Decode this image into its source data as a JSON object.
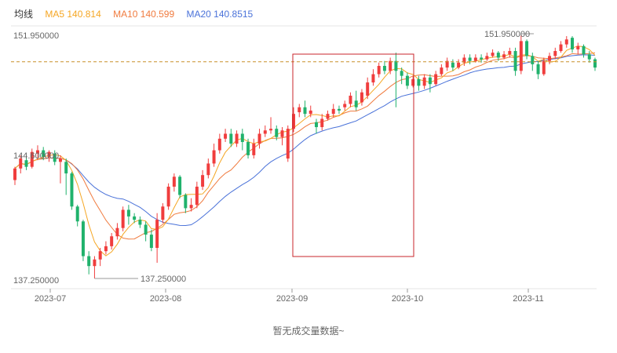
{
  "legend": {
    "title": "均线",
    "ma5": "MA5 140.814",
    "ma10": "MA10 140.599",
    "ma20": "MA20 140.8515"
  },
  "colors": {
    "up": "#f03d3d",
    "down": "#20b26c",
    "ma5": "#f5a623",
    "ma10": "#f07b3f",
    "ma20": "#4a72d9",
    "ref_line": "#c8902a",
    "box": "#c9242b",
    "axis_text": "#666666"
  },
  "empty_message": "暂无成交量数据~",
  "chart_data": {
    "type": "candlestick",
    "y_tick_labels": [
      "151.950000",
      "144.600000",
      "137.250000"
    ],
    "ylim": [
      137.25,
      151.95
    ],
    "x_tick_labels": [
      "2023-07",
      "2023-08",
      "2023-09",
      "2023-10",
      "2023-11"
    ],
    "reference_line": 150.35,
    "annotations": {
      "high": "151.950000",
      "low": "137.250000"
    },
    "highlight_box": {
      "from": "2023-09",
      "to": "2023-10"
    },
    "candles": [
      [
        143.2,
        143.9,
        144.0,
        142.9
      ],
      [
        143.9,
        144.5,
        144.7,
        143.6
      ],
      [
        144.4,
        144.0,
        144.7,
        143.8
      ],
      [
        144.0,
        144.9,
        145.1,
        143.9
      ],
      [
        144.8,
        145.0,
        145.3,
        144.4
      ],
      [
        145.0,
        144.6,
        145.2,
        144.4
      ],
      [
        144.6,
        144.9,
        145.0,
        144.3
      ],
      [
        144.8,
        144.3,
        145.0,
        144.1
      ],
      [
        144.3,
        144.5,
        144.7,
        143.0
      ],
      [
        144.3,
        143.6,
        144.5,
        142.3
      ],
      [
        143.6,
        141.6,
        143.7,
        141.4
      ],
      [
        141.6,
        140.7,
        141.7,
        140.4
      ],
      [
        140.7,
        138.6,
        140.8,
        138.3
      ],
      [
        138.6,
        138.0,
        138.9,
        137.5
      ],
      [
        138.0,
        138.4,
        138.6,
        137.25
      ],
      [
        138.4,
        138.9,
        139.1,
        138.0
      ],
      [
        138.9,
        139.2,
        139.5,
        138.7
      ],
      [
        139.2,
        139.8,
        140.0,
        139.0
      ],
      [
        139.8,
        140.3,
        140.6,
        139.6
      ],
      [
        140.3,
        141.4,
        141.6,
        140.1
      ],
      [
        141.4,
        141.0,
        141.7,
        140.5
      ],
      [
        141.0,
        140.8,
        141.2,
        140.6
      ],
      [
        140.8,
        140.5,
        141.0,
        140.3
      ],
      [
        140.5,
        139.9,
        140.7,
        139.5
      ],
      [
        139.9,
        139.1,
        140.2,
        138.9
      ],
      [
        139.1,
        140.8,
        141.2,
        138.2
      ],
      [
        140.8,
        141.6,
        141.8,
        140.6
      ],
      [
        141.6,
        142.8,
        143.0,
        141.4
      ],
      [
        142.8,
        143.4,
        143.6,
        142.5
      ],
      [
        143.4,
        142.3,
        143.5,
        142.1
      ],
      [
        142.3,
        141.5,
        142.4,
        141.2
      ],
      [
        141.5,
        141.7,
        142.1,
        141.3
      ],
      [
        141.7,
        142.8,
        143.1,
        141.5
      ],
      [
        142.8,
        143.5,
        143.8,
        142.6
      ],
      [
        143.5,
        144.2,
        144.5,
        143.3
      ],
      [
        144.2,
        145.0,
        145.4,
        144.0
      ],
      [
        145.0,
        145.7,
        146.0,
        144.8
      ],
      [
        145.7,
        146.0,
        146.3,
        145.5
      ],
      [
        146.0,
        145.4,
        146.3,
        145.2
      ],
      [
        145.4,
        146.0,
        146.2,
        145.2
      ],
      [
        146.0,
        145.5,
        146.3,
        145.0
      ],
      [
        145.5,
        144.7,
        145.7,
        144.5
      ],
      [
        144.7,
        145.4,
        145.7,
        144.5
      ],
      [
        145.4,
        146.0,
        146.3,
        145.1
      ],
      [
        146.0,
        146.2,
        146.5,
        145.8
      ],
      [
        146.2,
        146.3,
        147.0,
        146.0
      ],
      [
        146.3,
        145.8,
        146.5,
        145.6
      ],
      [
        145.8,
        146.2,
        146.4,
        145.3
      ],
      [
        144.5,
        146.3,
        146.5,
        144.3
      ],
      [
        146.3,
        147.2,
        147.6,
        146.1
      ],
      [
        147.3,
        147.6,
        147.8,
        147.0
      ],
      [
        147.6,
        147.2,
        148.0,
        147.0
      ],
      [
        147.2,
        147.4,
        147.7,
        147.0
      ],
      [
        146.7,
        146.4,
        146.9,
        146.0
      ],
      [
        146.4,
        146.9,
        147.2,
        146.2
      ],
      [
        146.9,
        147.2,
        147.4,
        146.8
      ],
      [
        147.2,
        147.5,
        147.8,
        147.0
      ],
      [
        147.5,
        147.4,
        147.7,
        147.2
      ],
      [
        147.6,
        147.8,
        148.0,
        147.4
      ],
      [
        147.8,
        148.3,
        148.5,
        147.6
      ],
      [
        148.0,
        147.6,
        148.6,
        147.4
      ],
      [
        147.9,
        148.5,
        148.7,
        147.7
      ],
      [
        148.3,
        149.1,
        149.4,
        148.1
      ],
      [
        149.1,
        149.6,
        149.9,
        148.9
      ],
      [
        149.6,
        150.1,
        150.3,
        149.4
      ],
      [
        150.1,
        149.8,
        150.4,
        149.6
      ],
      [
        149.8,
        150.4,
        150.6,
        149.6
      ],
      [
        150.4,
        149.8,
        150.9,
        147.6
      ],
      [
        149.8,
        149.5,
        150.0,
        149.0
      ],
      [
        149.5,
        148.9,
        149.7,
        148.7
      ],
      [
        148.9,
        149.3,
        149.5,
        148.8
      ],
      [
        149.3,
        148.9,
        149.5,
        148.6
      ],
      [
        148.9,
        149.4,
        149.6,
        148.7
      ],
      [
        149.4,
        149.0,
        149.6,
        148.5
      ],
      [
        149.0,
        149.6,
        149.8,
        148.9
      ],
      [
        149.6,
        150.0,
        150.2,
        149.5
      ],
      [
        150.0,
        150.4,
        150.6,
        149.8
      ],
      [
        150.3,
        150.0,
        150.5,
        149.8
      ],
      [
        150.0,
        150.3,
        150.5,
        149.9
      ],
      [
        150.3,
        150.6,
        150.8,
        150.1
      ],
      [
        150.6,
        150.4,
        150.8,
        150.2
      ],
      [
        150.4,
        150.6,
        150.8,
        150.3
      ],
      [
        150.6,
        150.5,
        150.8,
        150.3
      ],
      [
        150.5,
        150.7,
        150.9,
        150.4
      ],
      [
        150.7,
        150.9,
        151.1,
        150.6
      ],
      [
        150.9,
        150.6,
        151.0,
        150.4
      ],
      [
        150.6,
        150.8,
        151.0,
        150.5
      ],
      [
        150.8,
        151.0,
        151.2,
        150.6
      ],
      [
        151.0,
        149.8,
        151.2,
        149.5
      ],
      [
        149.8,
        151.6,
        151.95,
        149.6
      ],
      [
        151.6,
        150.7,
        151.7,
        150.5
      ],
      [
        150.7,
        150.2,
        150.9,
        149.8
      ],
      [
        150.2,
        149.6,
        150.4,
        149.3
      ],
      [
        149.6,
        150.4,
        150.6,
        149.5
      ],
      [
        150.4,
        150.7,
        150.9,
        150.2
      ],
      [
        150.7,
        151.0,
        151.2,
        150.5
      ],
      [
        151.0,
        151.4,
        151.6,
        150.9
      ],
      [
        151.4,
        151.7,
        151.9,
        151.2
      ],
      [
        151.8,
        151.1,
        151.9,
        150.9
      ],
      [
        151.1,
        151.3,
        151.5,
        150.8
      ],
      [
        151.3,
        150.8,
        151.4,
        150.6
      ],
      [
        150.8,
        150.5,
        151.0,
        150.3
      ],
      [
        150.5,
        150.0,
        150.6,
        149.8
      ]
    ]
  }
}
